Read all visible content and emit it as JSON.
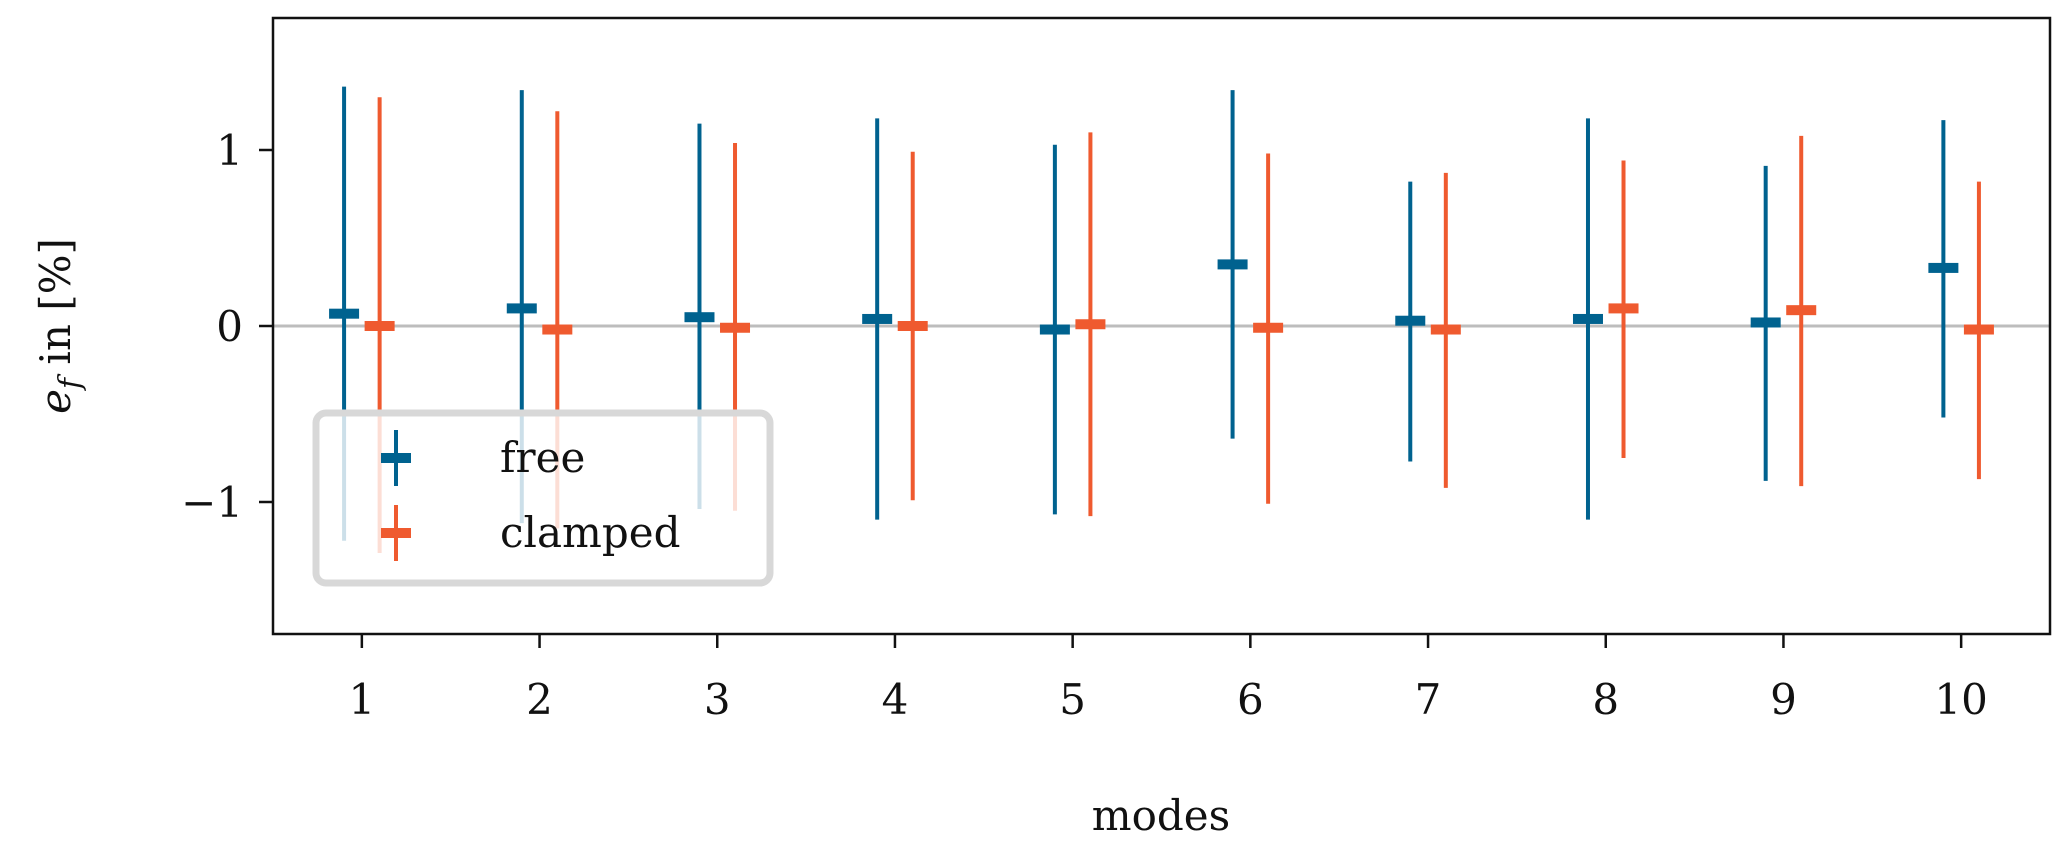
{
  "chart_data": {
    "type": "errorbar",
    "xlabel": "modes",
    "ylabel": "e_f in [%]",
    "ylabel_main": "e",
    "ylabel_sub": "f",
    "ylabel_rest": " in [%]",
    "xlim": [
      0.5,
      10.5
    ],
    "ylim": [
      -1.75,
      1.75
    ],
    "x_ticks": [
      1,
      2,
      3,
      4,
      5,
      6,
      7,
      8,
      9,
      10
    ],
    "x_tick_labels": [
      "1",
      "2",
      "3",
      "4",
      "5",
      "6",
      "7",
      "8",
      "9",
      "10"
    ],
    "y_ticks": [
      -1,
      0,
      1
    ],
    "y_tick_labels": [
      "−1",
      "0",
      "1"
    ],
    "grid": false,
    "zero_line": true,
    "legend_position": "lower-left",
    "categories": [
      1,
      2,
      3,
      4,
      5,
      6,
      7,
      8,
      9,
      10
    ],
    "series": [
      {
        "name": "free",
        "color": "#00628f",
        "offset": -0.1,
        "center": [
          0.07,
          0.1,
          0.05,
          0.04,
          -0.02,
          0.35,
          0.03,
          0.04,
          0.02,
          0.33
        ],
        "upper": [
          1.36,
          1.34,
          1.15,
          1.18,
          1.03,
          1.34,
          0.82,
          1.18,
          0.91,
          1.17
        ],
        "lower": [
          -1.22,
          -1.12,
          -1.04,
          -1.1,
          -1.07,
          -0.64,
          -0.77,
          -1.1,
          -0.88,
          -0.52
        ]
      },
      {
        "name": "clamped",
        "color": "#ef5a2f",
        "offset": 0.1,
        "center": [
          0.0,
          -0.02,
          -0.01,
          0.0,
          0.01,
          -0.01,
          -0.02,
          0.1,
          0.09,
          -0.02
        ],
        "upper": [
          1.3,
          1.22,
          1.04,
          0.99,
          1.1,
          0.98,
          0.87,
          0.94,
          1.08,
          0.82
        ],
        "lower": [
          -1.29,
          -1.15,
          -1.05,
          -0.99,
          -1.08,
          -1.01,
          -0.92,
          -0.75,
          -0.91,
          -0.87
        ]
      }
    ]
  }
}
